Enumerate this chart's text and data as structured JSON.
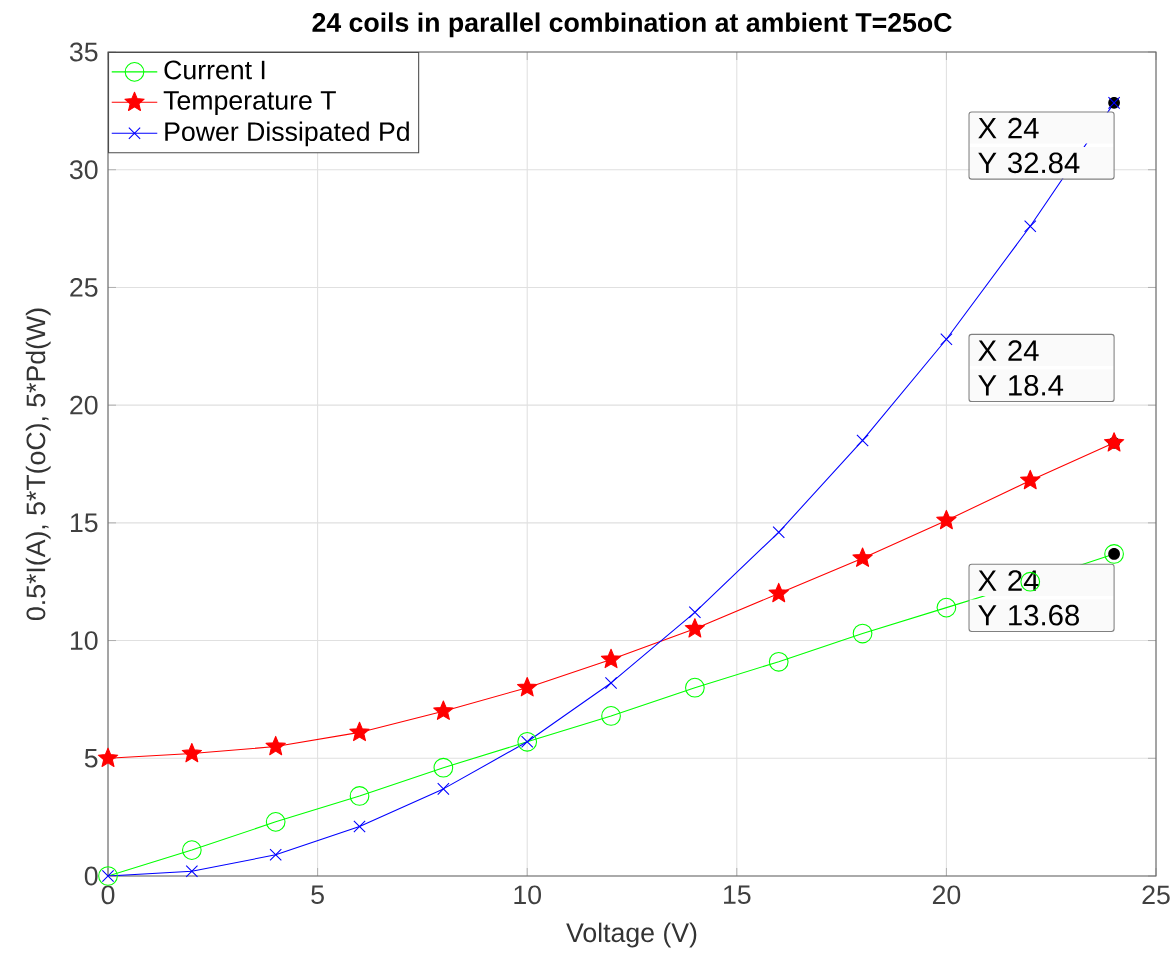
{
  "chart_data": {
    "type": "line",
    "title": "24 coils in parallel combination at ambient T=25oC",
    "xlabel": "Voltage (V)",
    "ylabel": "0.5*I(A), 5*T(oC), 5*Pd(W)",
    "x": [
      0,
      2,
      4,
      6,
      8,
      10,
      12,
      14,
      16,
      18,
      20,
      22,
      24
    ],
    "series": [
      {
        "name": "Current I",
        "color": "#00ff00",
        "marker": "circle",
        "values": [
          0,
          1.1,
          2.3,
          3.4,
          4.6,
          5.7,
          6.8,
          8.0,
          9.1,
          10.3,
          11.4,
          12.5,
          13.68
        ]
      },
      {
        "name": "Temperature T",
        "color": "#ff0000",
        "marker": "star",
        "values": [
          5,
          5.2,
          5.5,
          6.1,
          7.0,
          8.0,
          9.2,
          10.5,
          12.0,
          13.5,
          15.1,
          16.8,
          18.4
        ]
      },
      {
        "name": "Power Dissipated Pd",
        "color": "#0000ff",
        "marker": "cross",
        "values": [
          0,
          0.2,
          0.9,
          2.1,
          3.7,
          5.7,
          8.2,
          11.2,
          14.6,
          18.5,
          22.8,
          27.6,
          32.84
        ]
      }
    ],
    "annotations": [
      "X 24",
      "Y 32.84",
      "X 24",
      "Y 18.4",
      "X 24",
      "Y 13.68"
    ],
    "xlim": [
      0,
      25
    ],
    "ylim": [
      0,
      35
    ],
    "xticks": [
      0,
      5,
      10,
      15,
      20,
      25
    ],
    "yticks": [
      0,
      5,
      10,
      15,
      20,
      25,
      30,
      35
    ],
    "grid": true,
    "legend": "top left",
    "line_style": "solid"
  }
}
